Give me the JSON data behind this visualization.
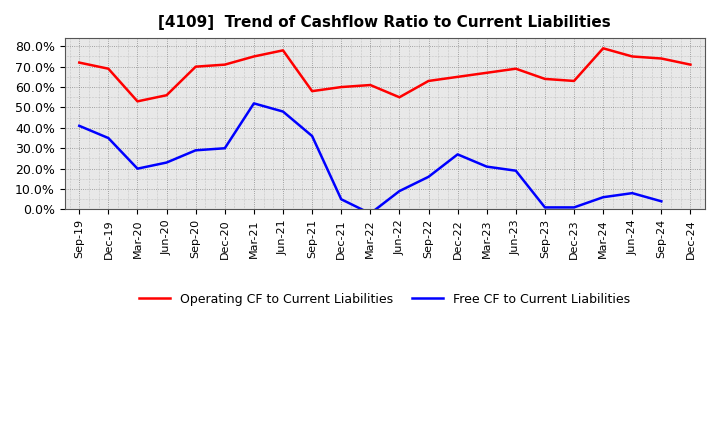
{
  "title": "[4109]  Trend of Cashflow Ratio to Current Liabilities",
  "x_labels": [
    "Sep-19",
    "Dec-19",
    "Mar-20",
    "Jun-20",
    "Sep-20",
    "Dec-20",
    "Mar-21",
    "Jun-21",
    "Sep-21",
    "Dec-21",
    "Mar-22",
    "Jun-22",
    "Sep-22",
    "Dec-22",
    "Mar-23",
    "Jun-23",
    "Sep-23",
    "Dec-23",
    "Mar-24",
    "Jun-24",
    "Sep-24",
    "Dec-24"
  ],
  "operating_cf": [
    0.72,
    0.69,
    0.53,
    0.56,
    0.7,
    0.71,
    0.75,
    0.78,
    0.58,
    0.6,
    0.61,
    0.55,
    0.63,
    0.65,
    0.67,
    0.69,
    0.64,
    0.63,
    0.79,
    0.75,
    0.74,
    0.71
  ],
  "free_cf": [
    0.41,
    0.35,
    0.2,
    0.23,
    0.29,
    0.3,
    0.52,
    0.48,
    0.36,
    0.05,
    -0.02,
    0.09,
    0.16,
    0.27,
    0.21,
    0.19,
    0.01,
    0.01,
    0.06,
    0.08,
    0.04,
    null
  ],
  "operating_color": "#FF0000",
  "free_color": "#0000FF",
  "ylim": [
    0.0,
    0.84
  ],
  "yticks": [
    0.0,
    0.1,
    0.2,
    0.3,
    0.4,
    0.5,
    0.6,
    0.7,
    0.8
  ],
  "chart_bg": "#E8E8E8",
  "fig_bg": "#FFFFFF",
  "grid_color": "#808080",
  "legend_labels": [
    "Operating CF to Current Liabilities",
    "Free CF to Current Liabilities"
  ],
  "title_fontsize": 11,
  "tick_fontsize": 8
}
